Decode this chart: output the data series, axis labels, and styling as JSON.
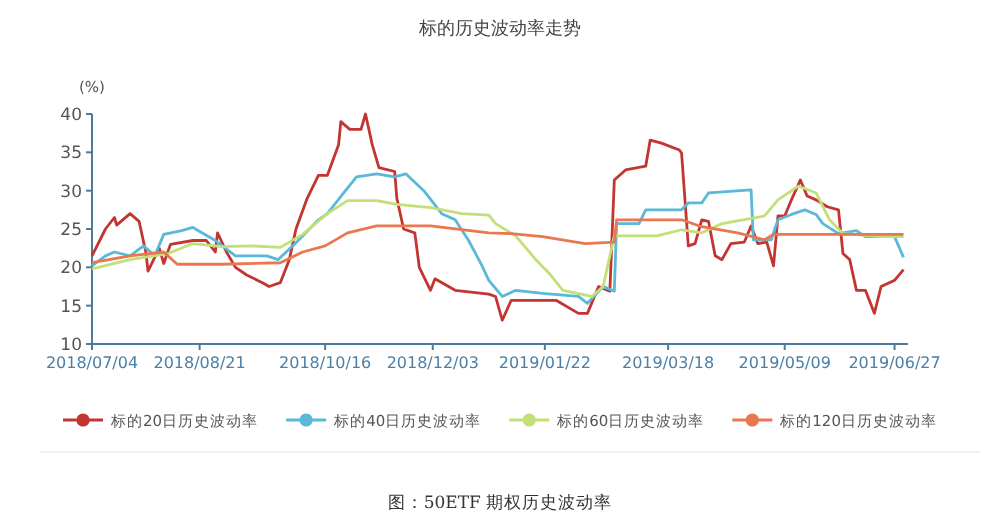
{
  "chart_data": {
    "type": "line",
    "title": "标的历史波动率走势",
    "ylabel": "(%)",
    "legend": "bottom",
    "xlim": [
      "2018-07-04",
      "2019-07-03"
    ],
    "ylim": [
      10,
      40
    ],
    "yticks": [
      10,
      15,
      20,
      25,
      30,
      35,
      40
    ],
    "xticks": [
      {
        "value": "2018-07-04",
        "label": "2018/07/04"
      },
      {
        "value": "2018-08-21",
        "label": "2018/08/21"
      },
      {
        "value": "2018-10-16",
        "label": "2018/10/16"
      },
      {
        "value": "2018-12-03",
        "label": "2018/12/03"
      },
      {
        "value": "2019-01-22",
        "label": "2019/01/22"
      },
      {
        "value": "2019-03-18",
        "label": "2019/03/18"
      },
      {
        "value": "2019-05-09",
        "label": "2019/05/09"
      },
      {
        "value": "2019-06-27",
        "label": "2019/06/27"
      }
    ],
    "series": [
      {
        "name": "标的20日历史波动率",
        "color": "#c23531",
        "x": [
          "2018-07-04",
          "2018-07-10",
          "2018-07-14",
          "2018-07-15",
          "2018-07-21",
          "2018-07-25",
          "2018-07-28",
          "2018-07-29",
          "2018-08-03",
          "2018-08-05",
          "2018-08-08",
          "2018-08-18",
          "2018-08-24",
          "2018-08-28",
          "2018-08-29",
          "2018-09-02",
          "2018-09-06",
          "2018-09-11",
          "2018-09-18",
          "2018-09-21",
          "2018-09-26",
          "2018-09-30",
          "2018-10-03",
          "2018-10-08",
          "2018-10-13",
          "2018-10-17",
          "2018-10-22",
          "2018-10-23",
          "2018-10-27",
          "2018-11-01",
          "2018-11-03",
          "2018-11-06",
          "2018-11-09",
          "2018-11-16",
          "2018-11-17",
          "2018-11-20",
          "2018-11-25",
          "2018-11-27",
          "2018-12-02",
          "2018-12-04",
          "2018-12-13",
          "2018-12-28",
          "2018-12-31",
          "2019-01-03",
          "2019-01-07",
          "2019-01-15",
          "2019-01-27",
          "2019-02-06",
          "2019-02-10",
          "2019-02-15",
          "2019-02-20",
          "2019-02-22",
          "2019-02-27",
          "2019-03-08",
          "2019-03-10",
          "2019-03-15",
          "2019-03-23",
          "2019-03-24",
          "2019-03-27",
          "2019-03-30",
          "2019-04-02",
          "2019-04-05",
          "2019-04-08",
          "2019-04-11",
          "2019-04-15",
          "2019-04-21",
          "2019-04-24",
          "2019-04-27",
          "2019-05-01",
          "2019-05-04",
          "2019-05-06",
          "2019-05-09",
          "2019-05-12",
          "2019-05-16",
          "2019-05-19",
          "2019-05-23",
          "2019-05-28",
          "2019-06-02",
          "2019-06-04",
          "2019-06-07",
          "2019-06-10",
          "2019-06-14",
          "2019-06-18",
          "2019-06-21",
          "2019-06-27",
          "2019-07-01"
        ],
        "values": [
          21.5,
          25,
          26.5,
          25.5,
          27,
          26,
          22,
          19.5,
          22.5,
          20.5,
          23,
          23.5,
          23.5,
          22,
          24.5,
          22,
          20,
          19,
          18,
          17.5,
          18,
          21,
          25,
          29,
          32,
          32,
          36,
          39,
          38,
          38,
          40,
          36,
          33,
          32.5,
          29,
          25,
          24.5,
          20,
          17,
          18.5,
          17,
          16.5,
          16.2,
          13.1,
          15.7,
          15.7,
          15.7,
          14,
          14,
          17.5,
          16.9,
          31.4,
          32.7,
          33.2,
          36.6,
          36.2,
          35.3,
          34.9,
          22.8,
          23.1,
          26.2,
          26,
          21.5,
          21,
          23.1,
          23.3,
          25.4,
          23.1,
          23.3,
          20.2,
          26.7,
          26.7,
          28.8,
          31.4,
          29.3,
          28.8,
          27.9,
          27.5,
          21.8,
          21,
          17,
          17,
          14,
          17.5,
          18.3,
          19.7
        ]
      },
      {
        "name": "标的40日历史波动率",
        "color": "#5ab8d8",
        "x": [
          "2018-07-04",
          "2018-07-10",
          "2018-07-14",
          "2018-07-21",
          "2018-07-27",
          "2018-08-01",
          "2018-08-05",
          "2018-08-13",
          "2018-08-18",
          "2018-08-28",
          "2018-09-06",
          "2018-09-20",
          "2018-09-25",
          "2018-10-03",
          "2018-10-13",
          "2018-10-17",
          "2018-10-24",
          "2018-10-30",
          "2018-11-08",
          "2018-11-16",
          "2018-11-21",
          "2018-11-29",
          "2018-12-07",
          "2018-12-13",
          "2018-12-19",
          "2018-12-25",
          "2018-12-28",
          "2019-01-03",
          "2019-01-09",
          "2019-01-21",
          "2019-02-06",
          "2019-02-10",
          "2019-02-17",
          "2019-02-22",
          "2019-02-23",
          "2019-03-05",
          "2019-03-08",
          "2019-03-24",
          "2019-03-27",
          "2019-04-02",
          "2019-04-05",
          "2019-04-24",
          "2019-04-25",
          "2019-05-03",
          "2019-05-06",
          "2019-05-12",
          "2019-05-18",
          "2019-05-23",
          "2019-05-26",
          "2019-06-02",
          "2019-06-10",
          "2019-06-14",
          "2019-06-27",
          "2019-07-01"
        ],
        "values": [
          20.2,
          21.5,
          22,
          21.5,
          22.8,
          21.5,
          24.3,
          24.8,
          25.2,
          23.5,
          21.5,
          21.5,
          21,
          23.2,
          26.2,
          27,
          29.6,
          31.8,
          32.2,
          31.8,
          32.2,
          30,
          27,
          26.2,
          23.5,
          20.2,
          18.3,
          16.2,
          17,
          16.6,
          16.2,
          15.3,
          17.5,
          16.9,
          25.7,
          25.7,
          27.5,
          27.5,
          28.4,
          28.4,
          29.7,
          30.1,
          23.6,
          23.6,
          26.2,
          26.9,
          27.5,
          26.9,
          25.7,
          24.4,
          24.8,
          24,
          24,
          21.3
        ]
      },
      {
        "name": "标的60日历史波动率",
        "color": "#c3df78",
        "x": [
          "2018-07-04",
          "2018-07-21",
          "2018-08-07",
          "2018-08-18",
          "2018-08-31",
          "2018-09-13",
          "2018-09-26",
          "2018-10-06",
          "2018-10-17",
          "2018-10-26",
          "2018-11-08",
          "2018-11-17",
          "2018-12-02",
          "2018-12-16",
          "2018-12-28",
          "2018-12-31",
          "2019-01-09",
          "2019-01-18",
          "2019-01-24",
          "2019-01-30",
          "2019-02-12",
          "2019-02-17",
          "2019-02-22",
          "2019-03-13",
          "2019-03-24",
          "2019-04-02",
          "2019-04-11",
          "2019-04-30",
          "2019-05-06",
          "2019-05-15",
          "2019-05-23",
          "2019-05-29",
          "2019-06-04",
          "2019-06-21",
          "2019-07-01"
        ],
        "values": [
          19.8,
          21,
          21.8,
          23.1,
          22.7,
          22.8,
          22.6,
          24.3,
          27,
          28.7,
          28.7,
          28.2,
          27.8,
          27,
          26.8,
          25.7,
          24.1,
          21,
          19.2,
          17,
          16.2,
          17.5,
          24.1,
          24.1,
          24.9,
          24.5,
          25.7,
          26.7,
          28.8,
          30.6,
          29.7,
          26.2,
          24.4,
          24,
          24
        ]
      },
      {
        "name": "标的120日历史波动率",
        "color": "#e9774f",
        "x": [
          "2018-07-04",
          "2018-07-21",
          "2018-08-05",
          "2018-08-11",
          "2018-08-31",
          "2018-09-26",
          "2018-10-06",
          "2018-10-16",
          "2018-10-26",
          "2018-11-08",
          "2018-12-02",
          "2018-12-28",
          "2019-01-07",
          "2019-01-21",
          "2019-02-09",
          "2019-02-22",
          "2019-02-23",
          "2019-03-24",
          "2019-04-02",
          "2019-04-18",
          "2019-04-30",
          "2019-05-04",
          "2019-05-23",
          "2019-07-01"
        ],
        "values": [
          20.6,
          21.5,
          22,
          20.4,
          20.4,
          20.6,
          22,
          22.8,
          24.5,
          25.4,
          25.4,
          24.5,
          24.4,
          24,
          23.1,
          23.3,
          26.2,
          26.2,
          25.3,
          24.5,
          23.6,
          24.3,
          24.3,
          24.3
        ]
      }
    ],
    "annotations": [
      "图：50ETF 期权历史波动率"
    ]
  }
}
